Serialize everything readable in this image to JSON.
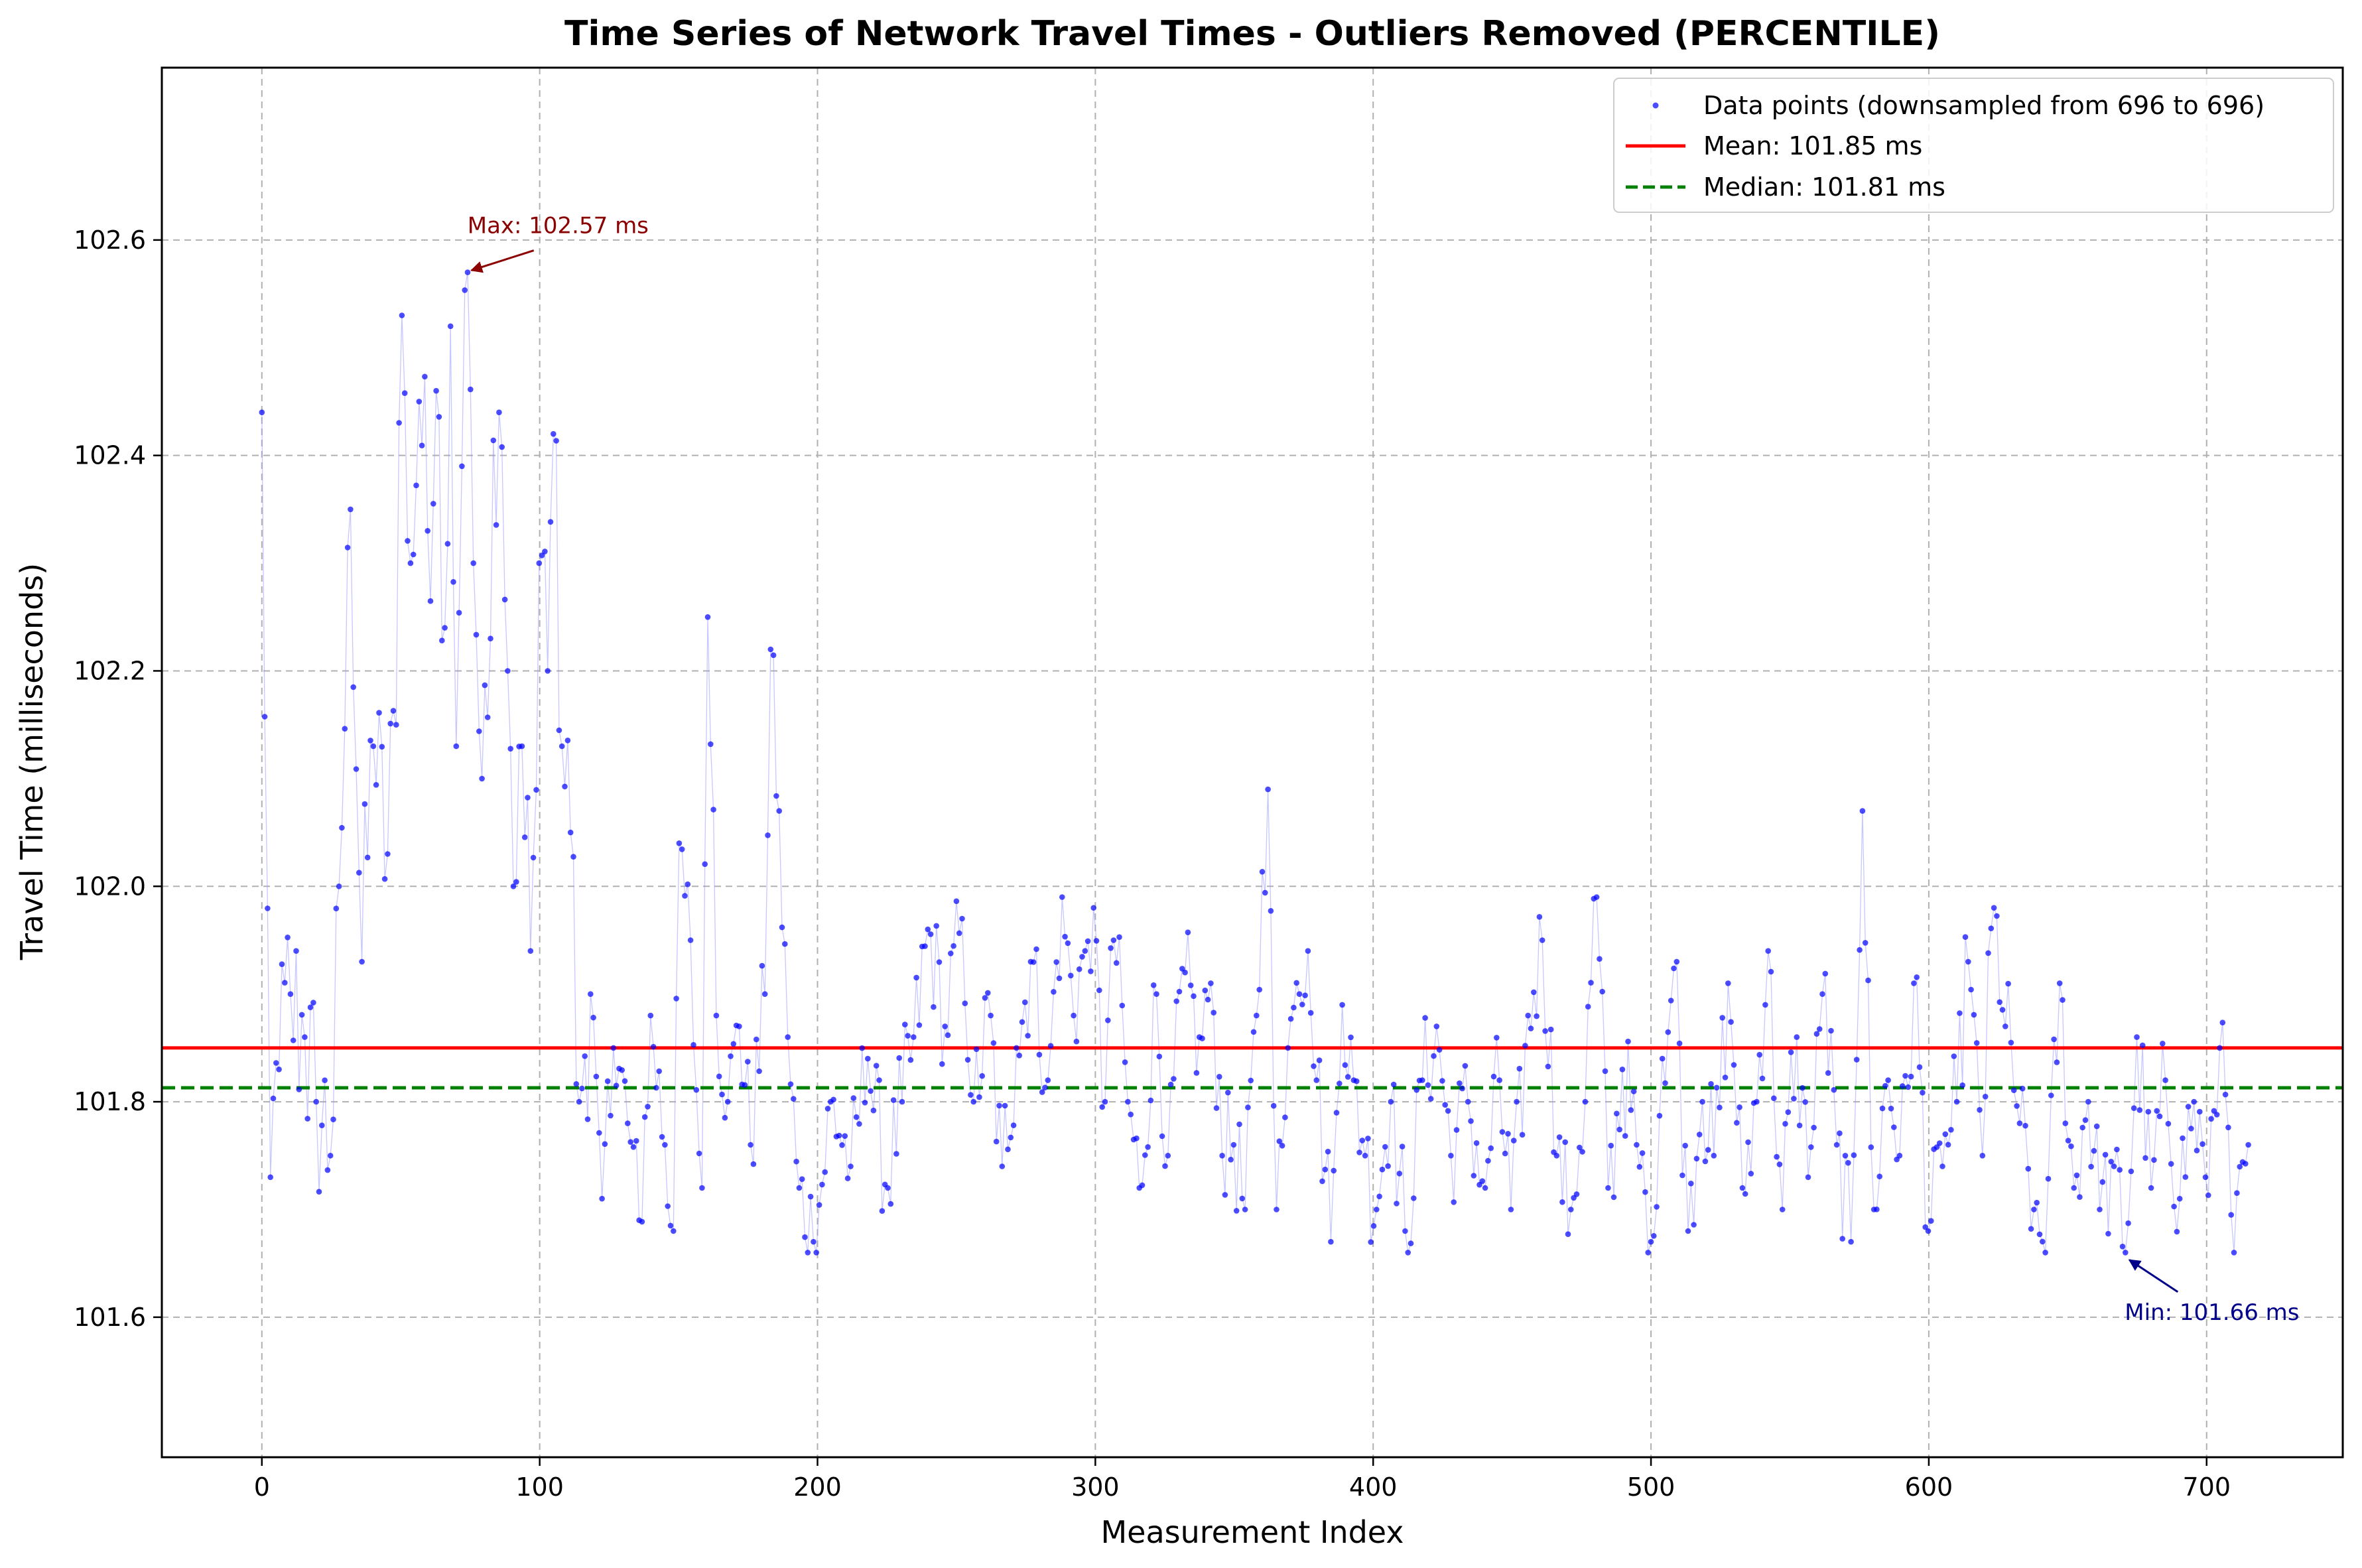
{
  "chart_data": {
    "type": "scatter",
    "title": "Time Series of Network Travel Times - Outliers Removed (PERCENTILE)",
    "xlabel": "Measurement Index",
    "ylabel": "Travel Time (milliseconds)",
    "xlim": [
      -36,
      749
    ],
    "ylim": [
      101.47,
      102.76
    ],
    "xticks": [
      0,
      100,
      200,
      300,
      400,
      500,
      600,
      700
    ],
    "yticks": [
      101.6,
      101.8,
      102.0,
      102.2,
      102.4,
      102.6
    ],
    "ytick_labels": [
      "101.6",
      "101.8",
      "102.0",
      "102.2",
      "102.4",
      "102.6"
    ],
    "grid": true,
    "legend_position": "top-right",
    "colors": {
      "points": "#0000ff",
      "connector": "#9999ff",
      "mean": "#ff0000",
      "median": "#008000",
      "max_annotation": "#8b0000",
      "min_annotation": "#00008b",
      "grid": "#b0b0b0"
    },
    "series": [
      {
        "name": "Data points (downsampled from 696 to 696)",
        "anchors": [
          [
            0,
            102.44
          ],
          [
            3,
            101.73
          ],
          [
            6,
            101.83
          ],
          [
            10,
            101.9
          ],
          [
            15,
            101.86
          ],
          [
            20,
            101.8
          ],
          [
            25,
            101.75
          ],
          [
            28,
            102.0
          ],
          [
            32,
            102.35
          ],
          [
            36,
            101.93
          ],
          [
            40,
            102.13
          ],
          [
            45,
            102.03
          ],
          [
            48,
            102.15
          ],
          [
            50,
            102.53
          ],
          [
            53,
            102.3
          ],
          [
            57,
            102.45
          ],
          [
            60,
            102.33
          ],
          [
            63,
            102.46
          ],
          [
            66,
            102.24
          ],
          [
            68,
            102.52
          ],
          [
            70,
            102.13
          ],
          [
            72,
            102.39
          ],
          [
            74,
            102.57
          ],
          [
            76,
            102.3
          ],
          [
            79,
            102.1
          ],
          [
            82,
            102.23
          ],
          [
            85,
            102.44
          ],
          [
            88,
            102.2
          ],
          [
            91,
            102.0
          ],
          [
            94,
            102.13
          ],
          [
            97,
            101.94
          ],
          [
            100,
            102.3
          ],
          [
            103,
            102.2
          ],
          [
            105,
            102.42
          ],
          [
            108,
            102.13
          ],
          [
            111,
            102.05
          ],
          [
            114,
            101.8
          ],
          [
            118,
            101.9
          ],
          [
            122,
            101.71
          ],
          [
            127,
            101.85
          ],
          [
            132,
            101.78
          ],
          [
            136,
            101.69
          ],
          [
            140,
            101.88
          ],
          [
            145,
            101.76
          ],
          [
            148,
            101.68
          ],
          [
            150,
            102.04
          ],
          [
            154,
            101.95
          ],
          [
            158,
            101.72
          ],
          [
            161,
            102.25
          ],
          [
            164,
            101.88
          ],
          [
            168,
            101.8
          ],
          [
            172,
            101.87
          ],
          [
            176,
            101.76
          ],
          [
            181,
            101.9
          ],
          [
            183,
            102.22
          ],
          [
            186,
            102.07
          ],
          [
            189,
            101.86
          ],
          [
            193,
            101.72
          ],
          [
            199,
            101.67
          ],
          [
            205,
            101.8
          ],
          [
            212,
            101.74
          ],
          [
            218,
            101.84
          ],
          [
            225,
            101.72
          ],
          [
            230,
            101.8
          ],
          [
            235,
            101.86
          ],
          [
            240,
            101.96
          ],
          [
            246,
            101.87
          ],
          [
            252,
            101.97
          ],
          [
            256,
            101.8
          ],
          [
            262,
            101.88
          ],
          [
            266,
            101.74
          ],
          [
            272,
            101.85
          ],
          [
            277,
            101.93
          ],
          [
            283,
            101.82
          ],
          [
            288,
            101.99
          ],
          [
            292,
            101.88
          ],
          [
            296,
            101.94
          ],
          [
            299,
            101.98
          ],
          [
            303,
            101.8
          ],
          [
            307,
            101.95
          ],
          [
            312,
            101.8
          ],
          [
            316,
            101.72
          ],
          [
            322,
            101.9
          ],
          [
            326,
            101.75
          ],
          [
            332,
            101.92
          ],
          [
            337,
            101.86
          ],
          [
            342,
            101.91
          ],
          [
            346,
            101.75
          ],
          [
            350,
            101.76
          ],
          [
            354,
            101.7
          ],
          [
            358,
            101.88
          ],
          [
            362,
            102.09
          ],
          [
            365,
            101.7
          ],
          [
            369,
            101.85
          ],
          [
            373,
            101.9
          ],
          [
            377,
            101.94
          ],
          [
            380,
            101.82
          ],
          [
            385,
            101.67
          ],
          [
            389,
            101.89
          ],
          [
            393,
            101.82
          ],
          [
            397,
            101.75
          ],
          [
            401,
            101.7
          ],
          [
            406,
            101.8
          ],
          [
            412,
            101.68
          ],
          [
            418,
            101.82
          ],
          [
            423,
            101.87
          ],
          [
            428,
            101.75
          ],
          [
            434,
            101.8
          ],
          [
            440,
            101.72
          ],
          [
            445,
            101.82
          ],
          [
            450,
            101.7
          ],
          [
            456,
            101.88
          ],
          [
            461,
            101.95
          ],
          [
            466,
            101.75
          ],
          [
            471,
            101.7
          ],
          [
            476,
            101.8
          ],
          [
            480,
            101.99
          ],
          [
            485,
            101.72
          ],
          [
            490,
            101.83
          ],
          [
            495,
            101.76
          ],
          [
            500,
            101.67
          ],
          [
            504,
            101.84
          ],
          [
            509,
            101.93
          ],
          [
            513,
            101.68
          ],
          [
            518,
            101.8
          ],
          [
            523,
            101.75
          ],
          [
            528,
            101.91
          ],
          [
            533,
            101.72
          ],
          [
            538,
            101.8
          ],
          [
            542,
            101.94
          ],
          [
            547,
            101.7
          ],
          [
            552,
            101.86
          ],
          [
            557,
            101.73
          ],
          [
            562,
            101.9
          ],
          [
            567,
            101.76
          ],
          [
            572,
            101.67
          ],
          [
            576,
            102.07
          ],
          [
            580,
            101.7
          ],
          [
            585,
            101.82
          ],
          [
            590,
            101.75
          ],
          [
            595,
            101.91
          ],
          [
            600,
            101.68
          ],
          [
            605,
            101.74
          ],
          [
            610,
            101.8
          ],
          [
            614,
            101.93
          ],
          [
            619,
            101.75
          ],
          [
            623,
            101.98
          ],
          [
            628,
            101.87
          ],
          [
            633,
            101.78
          ],
          [
            638,
            101.7
          ],
          [
            642,
            101.66
          ],
          [
            647,
            101.91
          ],
          [
            652,
            101.72
          ],
          [
            657,
            101.8
          ],
          [
            662,
            101.7
          ],
          [
            667,
            101.74
          ],
          [
            671,
            101.66
          ],
          [
            675,
            101.86
          ],
          [
            680,
            101.72
          ],
          [
            685,
            101.82
          ],
          [
            690,
            101.71
          ],
          [
            695,
            101.8
          ],
          [
            700,
            101.73
          ],
          [
            705,
            101.85
          ],
          [
            710,
            101.66
          ],
          [
            715,
            101.76
          ]
        ]
      },
      {
        "name": "Mean: 101.85 ms",
        "y": 101.85,
        "style": "solid"
      },
      {
        "name": "Median: 101.81 ms",
        "y": 101.813,
        "style": "dashed"
      }
    ],
    "point_count": 696,
    "annotations": [
      {
        "label": "Max: 102.57 ms",
        "x": 74,
        "y": 102.57,
        "text_x": 74,
        "text_y": 102.61
      },
      {
        "label": "Min: 101.66 ms",
        "x": 671,
        "y": 101.655,
        "text_x": 671,
        "text_y": 101.605
      }
    ]
  }
}
